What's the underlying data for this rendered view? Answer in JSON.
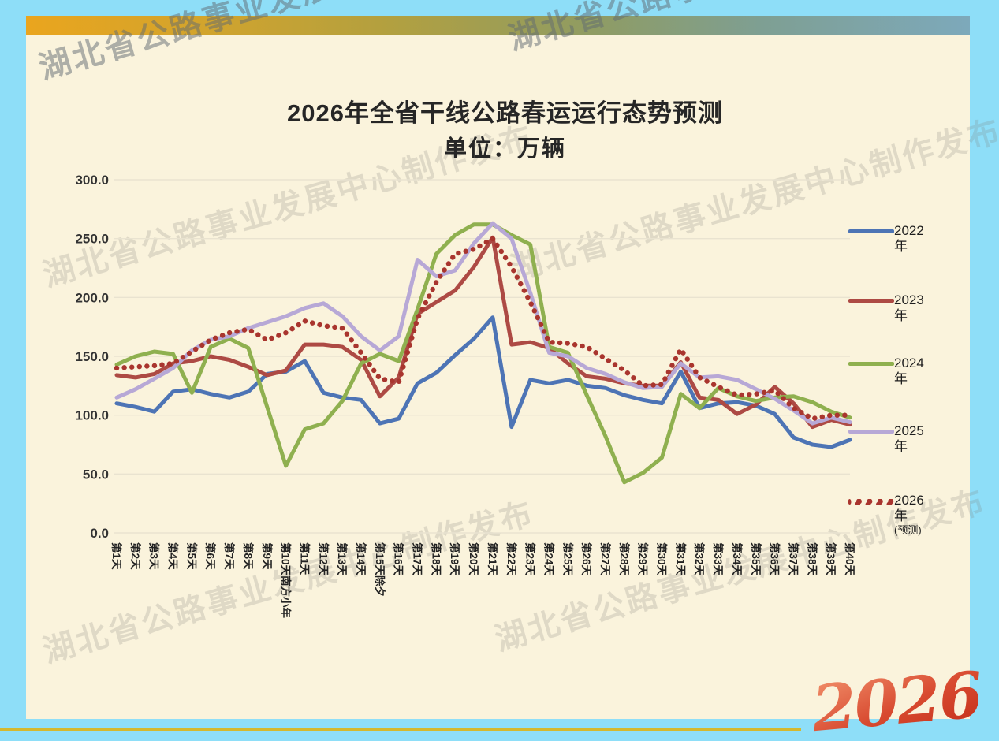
{
  "watermark": {
    "text": "湖北省公路事业发展中心制作发布"
  },
  "title": {
    "line1": "2026年全省干线公路春运运行态势预测",
    "line2": "单位：万辆"
  },
  "logo": {
    "text": "2026"
  },
  "colors": {
    "outer_background": "#8edef8",
    "card_background": "#faf3dc",
    "topbar_left": "#eaa51e",
    "topbar_right": "#7da9bb",
    "gridline": "#e9e3d0",
    "axis_text": "#333333",
    "title_text": "#262626",
    "logo_red": "#d84a30",
    "bottom_line": "#d4b82e"
  },
  "chart_data": {
    "type": "line",
    "title": "2026年全省干线公路春运运行态势预测",
    "subtitle_unit": "单位：万辆",
    "ylabel": "万辆",
    "xlabel": "",
    "ylim": [
      0,
      300
    ],
    "yticks": [
      0,
      50,
      100,
      150,
      200,
      250,
      300
    ],
    "ytick_decimals": 1,
    "grid": true,
    "legend_position": "right",
    "categories": [
      "第1天",
      "第2天",
      "第3天",
      "第4天",
      "第5天",
      "第6天",
      "第7天",
      "第8天",
      "第9天",
      "第10天南方小年",
      "第11天",
      "第12天",
      "第13天",
      "第14天",
      "第15天除夕",
      "第16天",
      "第17天",
      "第18天",
      "第19天",
      "第20天",
      "第21天",
      "第22天",
      "第23天",
      "第24天",
      "第25天",
      "第26天",
      "第27天",
      "第28天",
      "第29天",
      "第30天",
      "第31天",
      "第32天",
      "第33天",
      "第34天",
      "第35天",
      "第36天",
      "第37天",
      "第38天",
      "第39天",
      "第40天"
    ],
    "series": [
      {
        "name": "2022年",
        "legend_lines": [
          "2022",
          "年"
        ],
        "color": "#4d74b5",
        "style": "solid",
        "values": [
          110,
          107,
          103,
          120,
          122,
          118,
          115,
          120,
          135,
          137,
          146,
          119,
          115,
          113,
          93,
          97,
          127,
          136,
          151,
          165,
          183,
          90,
          130,
          127,
          130,
          125,
          123,
          117,
          113,
          110,
          137,
          106,
          110,
          111,
          108,
          101,
          81,
          75,
          73,
          79
        ]
      },
      {
        "name": "2023年",
        "legend_lines": [
          "2023",
          "年"
        ],
        "color": "#ad4a44",
        "style": "solid",
        "values": [
          134,
          132,
          135,
          144,
          146,
          150,
          147,
          141,
          134,
          138,
          160,
          160,
          158,
          147,
          116,
          132,
          186,
          196,
          206,
          226,
          251,
          160,
          162,
          157,
          144,
          133,
          131,
          127,
          125,
          125,
          145,
          115,
          113,
          101,
          109,
          124,
          110,
          90,
          96,
          92
        ]
      },
      {
        "name": "2024年",
        "legend_lines": [
          "2024",
          "年"
        ],
        "color": "#8fb04f",
        "style": "solid",
        "values": [
          143,
          150,
          154,
          152,
          119,
          158,
          165,
          157,
          107,
          57,
          88,
          93,
          112,
          144,
          152,
          146,
          190,
          237,
          253,
          262,
          262,
          253,
          245,
          158,
          153,
          117,
          82,
          43,
          51,
          64,
          118,
          106,
          123,
          116,
          112,
          115,
          116,
          111,
          103,
          98
        ]
      },
      {
        "name": "2025年",
        "legend_lines": [
          "2025",
          "年"
        ],
        "color": "#b7a8d6",
        "style": "solid",
        "values": [
          115,
          122,
          131,
          140,
          155,
          164,
          167,
          174,
          179,
          184,
          191,
          195,
          184,
          167,
          155,
          167,
          232,
          218,
          223,
          246,
          263,
          250,
          204,
          153,
          150,
          140,
          135,
          128,
          123,
          124,
          144,
          132,
          133,
          130,
          122,
          114,
          104,
          93,
          98,
          94
        ]
      },
      {
        "name": "2026年(预测)",
        "legend_lines": [
          "2026",
          "年",
          "(预测)"
        ],
        "color": "#a9352e",
        "style": "dotted",
        "values": [
          140,
          141,
          142,
          144,
          154,
          164,
          170,
          173,
          164,
          170,
          180,
          176,
          174,
          153,
          131,
          128,
          182,
          213,
          237,
          241,
          250,
          226,
          196,
          162,
          161,
          158,
          148,
          138,
          125,
          126,
          156,
          132,
          124,
          117,
          118,
          121,
          106,
          97,
          100,
          100
        ]
      }
    ]
  }
}
